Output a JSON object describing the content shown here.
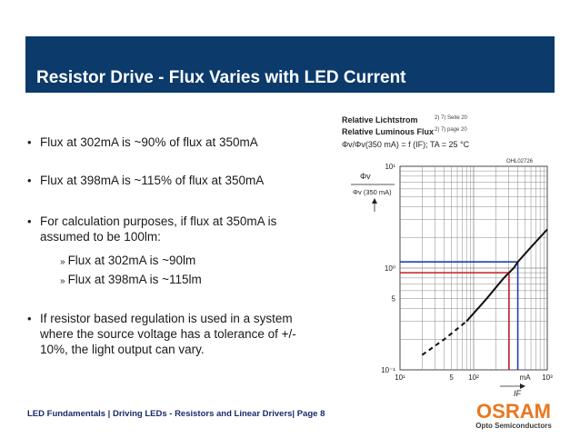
{
  "header": {
    "title": "Resistor Drive - Flux Varies with LED Current"
  },
  "bullets": [
    {
      "text": "Flux at 302mA is ~90% of flux at 350mA"
    },
    {
      "text": "Flux at 398mA is ~115% of flux at 350mA"
    },
    {
      "line1": "For calculation purposes, if flux at 350mA is",
      "line2": "assumed to be 100lm:"
    },
    {
      "line1": "If resistor based regulation is used in a system",
      "line2": "where the source voltage has a tolerance of +/-",
      "line3": "10%, the light output can vary."
    }
  ],
  "subbullets": [
    {
      "marker": "»",
      "text": "Flux at 302mA is ~90lm"
    },
    {
      "marker": "»",
      "text": "Flux at 398mA is ~115lm"
    }
  ],
  "chart": {
    "title_de": "Relative Lichtstrom",
    "title_de_sup": "2) 7) Seite 20",
    "title_en": "Relative Luminous Flux",
    "title_en_sup": "2) 7) page 20",
    "formula": "Φv/Φv(350 mA) = f (IF); TA = 25 °C",
    "code": "OHL02726",
    "y_num": "Φv",
    "y_den": "Φv (350 mA)",
    "y_ticks": [
      "10¹",
      "10⁰",
      "5",
      "10⁻¹"
    ],
    "x_ticks": [
      "10¹",
      "5",
      "10²",
      "mA",
      "10³"
    ],
    "x_label": "IF"
  },
  "chart_data": {
    "type": "line",
    "xscale": "log",
    "yscale": "log",
    "xlim": [
      10,
      1000
    ],
    "ylim": [
      0.1,
      10
    ],
    "series": [
      {
        "x": [
          20,
          40,
          80,
          150,
          250,
          302,
          350,
          398,
          600,
          1000
        ],
        "y": [
          0.14,
          0.2,
          0.3,
          0.5,
          0.78,
          0.9,
          1.0,
          1.15,
          1.6,
          2.4
        ]
      }
    ],
    "markers": {
      "blue_h": 1.15,
      "red_h": 0.9,
      "blue_v": 398,
      "red_v": 302
    },
    "colors": {
      "blue": "#1f3fb0",
      "red": "#c0202a",
      "curve": "#111111"
    }
  },
  "footer": {
    "text": "LED Fundamentals  |  Driving LEDs - Resistors and Linear Drivers|  Page 8"
  },
  "logo": {
    "brand": "OSRAM",
    "sub": "Opto Semiconductors"
  }
}
